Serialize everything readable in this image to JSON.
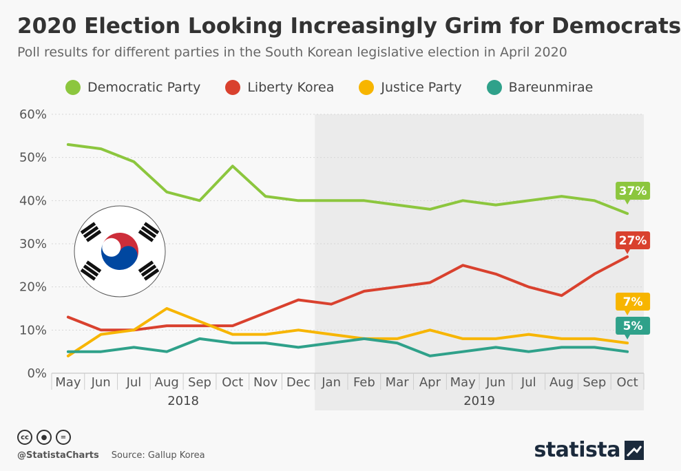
{
  "header": {
    "title": "2020 Election Looking Increasingly Grim for Democrats",
    "subtitle": "Poll results for different parties in the South Korean legislative election in April 2020"
  },
  "footer": {
    "handle": "@StatistaCharts",
    "source": "Source: Gallup Korea",
    "brand": "statista"
  },
  "chart_data": {
    "type": "line",
    "title": "2020 Election Looking Increasingly Grim for Democrats",
    "subtitle": "Poll results for different parties in the South Korean legislative election in April 2020",
    "categories": [
      "May",
      "Jun",
      "Jul",
      "Aug",
      "Sep",
      "Oct",
      "Nov",
      "Dec",
      "Jan",
      "Feb",
      "Mar",
      "Apr",
      "May",
      "Jun",
      "Jul",
      "Aug",
      "Sep",
      "Oct"
    ],
    "year_groups": [
      {
        "label": "2018",
        "from": 0,
        "to": 7
      },
      {
        "label": "2019",
        "from": 8,
        "to": 17,
        "shaded": true
      }
    ],
    "ylim": [
      0,
      60
    ],
    "yticks": [
      0,
      10,
      20,
      30,
      40,
      50,
      60
    ],
    "ytick_labels": [
      "0%",
      "10%",
      "20%",
      "30%",
      "40%",
      "50%",
      "60%"
    ],
    "grid": true,
    "legend_position": "top",
    "series": [
      {
        "name": "Democratic Party",
        "color": "#8cc63e",
        "values": [
          53,
          52,
          49,
          42,
          40,
          48,
          41,
          40,
          40,
          40,
          39,
          38,
          40,
          39,
          40,
          41,
          40,
          37
        ],
        "end_label": "37%"
      },
      {
        "name": "Liberty Korea",
        "color": "#d9412e",
        "values": [
          13,
          10,
          10,
          11,
          11,
          11,
          14,
          17,
          16,
          19,
          20,
          21,
          25,
          23,
          20,
          18,
          23,
          27
        ],
        "end_label": "27%"
      },
      {
        "name": "Justice Party",
        "color": "#f7b500",
        "values": [
          4,
          9,
          10,
          15,
          12,
          9,
          9,
          10,
          9,
          8,
          8,
          10,
          8,
          8,
          9,
          8,
          8,
          7
        ],
        "end_label": "7%"
      },
      {
        "name": "Bareunmirae",
        "color": "#2fa18a",
        "values": [
          5,
          5,
          6,
          5,
          8,
          7,
          7,
          6,
          7,
          8,
          7,
          4,
          5,
          6,
          5,
          6,
          6,
          5
        ],
        "end_label": "5%"
      }
    ]
  }
}
